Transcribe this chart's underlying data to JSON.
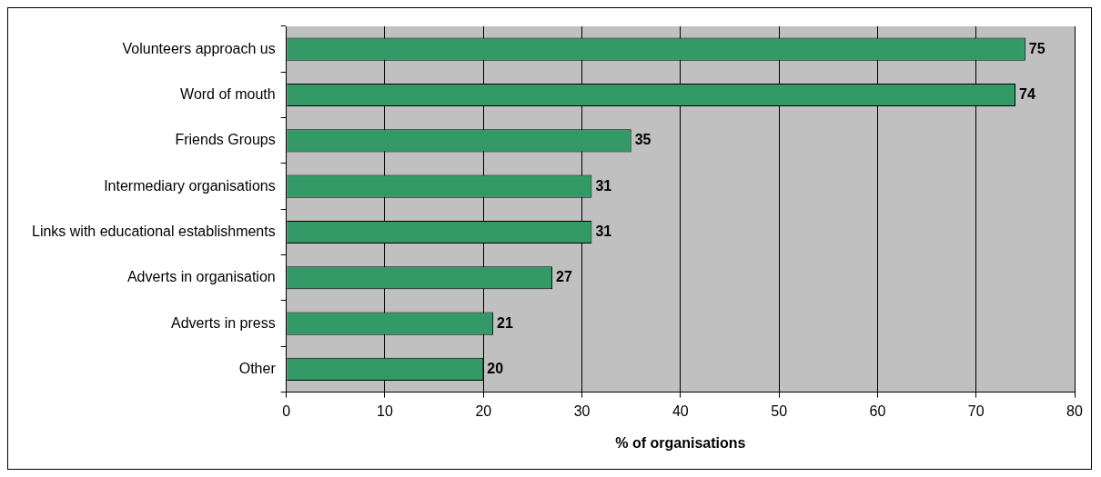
{
  "chart_data": {
    "type": "bar",
    "orientation": "horizontal",
    "categories": [
      "Volunteers approach us",
      "Word of mouth",
      "Friends Groups",
      "Intermediary organisations",
      "Links with educational establishments",
      "Adverts in organisation",
      "Adverts in press",
      "Other"
    ],
    "values": [
      75,
      74,
      35,
      31,
      31,
      27,
      21,
      20
    ],
    "color": "#339966",
    "xlim": [
      0,
      80
    ],
    "xticks": [
      0,
      10,
      20,
      30,
      40,
      50,
      60,
      70,
      80
    ],
    "xlabel": "% of organisations",
    "grid": "x",
    "legend": false,
    "data_labels": true
  }
}
